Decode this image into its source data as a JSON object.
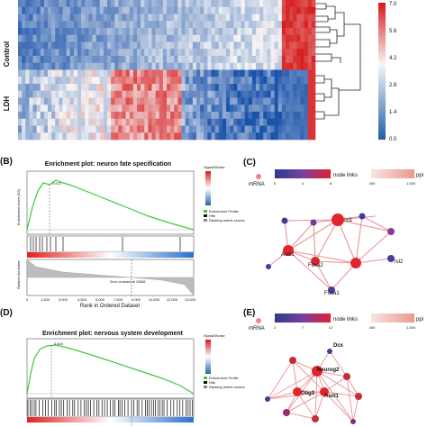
{
  "heatmap": {
    "row_labels": [
      "Control",
      "LDH"
    ],
    "colorbar_ticks": [
      "7.0",
      "5.6",
      "4.2",
      "2.8",
      "1.4",
      "0.0"
    ]
  },
  "panel_b": {
    "panel_label": "(B)",
    "title": "Enrichment plot: neuron fate specification",
    "peak_label": "0.672",
    "ylabel_top": "Enrichment score (ES)",
    "ylabel_bottom": "Ranked list metric",
    "xlabel": "Rank in Ordered Dataset",
    "x_ticks": [
      "0",
      "1,500",
      "3,000",
      "4,500",
      "6,000",
      "7,500",
      "9,000",
      "10,500",
      "12,000",
      "13,500"
    ],
    "zero_cross": "Zero crossed at 10661",
    "legend_title": "Signal2Noise",
    "legend_items": [
      "Enrichment Profile",
      "Hits",
      "Ranking metric scores"
    ]
  },
  "panel_c": {
    "panel_label": "(C)",
    "mrna_label": "mRNA",
    "node_links_label": "node links",
    "node_links_ticks": [
      "0",
      "4",
      "8"
    ],
    "ppi_label": "ppi",
    "ppi_ticks": [
      "400",
      "1,000"
    ],
    "nodes": [
      "Isl1",
      "Ascl1",
      "Foxa2",
      "Isl2",
      "Foxa1"
    ]
  },
  "panel_d": {
    "panel_label": "(D)",
    "title": "Enrichment plot: nervous system development",
    "peak_label": "0.524",
    "legend_title": "Signal2Noise",
    "legend_items": [
      "Enrichment Profile",
      "Hits",
      "Ranking metric scores"
    ]
  },
  "panel_e": {
    "panel_label": "(E)",
    "mrna_label": "mRNA",
    "node_links_label": "node links",
    "node_links_ticks": [
      "2",
      "7",
      "12"
    ],
    "ppi_label": "ppi",
    "ppi_ticks": [
      "400",
      "1,000"
    ],
    "nodes": [
      "Dcx",
      "Neurog2",
      "Olig3",
      "Ascl1"
    ]
  }
}
